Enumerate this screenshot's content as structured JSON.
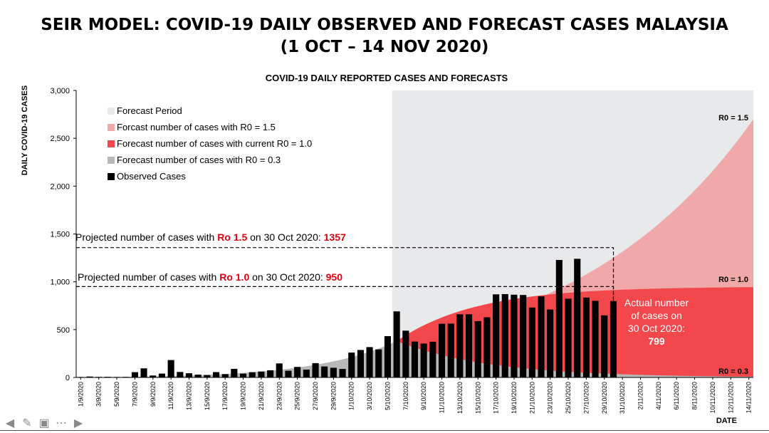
{
  "slide": {
    "title_line1": "SEIR MODEL: COVID-19 DAILY OBSERVED AND FORECAST CASES MALAYSIA",
    "title_line2": "(1 OCT – 14 NOV 2020)"
  },
  "annotations": {
    "proj15_prefix": "Projected number of cases with ",
    "proj15_ro": "Ro 1.5",
    "proj15_mid": " on 30 Oct 2020: ",
    "proj15_value": "1357",
    "proj10_prefix": "Projected number of cases with ",
    "proj10_ro": "Ro 1.0",
    "proj10_mid": " on 30 Oct 2020: ",
    "proj10_value": "950",
    "actual_line1": "Actual number",
    "actual_line2": "of cases on",
    "actual_line3": "30 Oct 2020:",
    "actual_value": "799"
  },
  "nav_icons": [
    "arrow-left-icon",
    "pen-icon",
    "slides-icon",
    "more-icon",
    "arrow-right-icon"
  ],
  "chart_data": {
    "type": "bar",
    "title": "COVID-19 DAILY REPORTED CASES AND FORECASTS",
    "ylabel": "DAILY COVID-19 CASES",
    "xlabel": "DATE",
    "ylim": [
      0,
      3000
    ],
    "yticks": [
      "0",
      "500",
      "1,000",
      "1,500",
      "2,000",
      "2,500",
      "3,000"
    ],
    "ytick_values": [
      0,
      500,
      1000,
      1500,
      2000,
      2500,
      3000
    ],
    "x_tick_labels": [
      "1/9/2020",
      "3/9/2020",
      "5/9/2020",
      "7/9/2020",
      "9/9/2020",
      "11/9/2020",
      "13/9/2020",
      "15/9/2020",
      "17/9/2020",
      "19/9/2020",
      "21/9/2020",
      "23/9/2020",
      "25/9/2020",
      "27/9/2020",
      "29/9/2020",
      "1/10/2020",
      "3/10/2020",
      "5/10/2020",
      "7/10/2020",
      "9/10/2020",
      "11/10/2020",
      "13/10/2020",
      "15/10/2020",
      "17/10/2020",
      "19/10/2020",
      "21/10/2020",
      "23/10/2020",
      "25/10/2020",
      "27/10/2020",
      "29/10/2020",
      "31/10/2020",
      "2/11/2020",
      "4/11/2020",
      "6/11/2020",
      "8/11/2020",
      "10/11/2020",
      "12/11/2020",
      "14/11/2020"
    ],
    "legend": [
      "Forecast Period",
      "Forcast number of cases with R0 = 1.5",
      "Forecast number of cases with current R0 = 1.0",
      "Forecast number of cases with R0 = 0.3",
      "Observed Cases"
    ],
    "legend_position": "top-left",
    "colors": {
      "forecast_period": "#e8e9eb",
      "r15": "#f0a8a8",
      "r10": "#f2484b",
      "r03": "#b8b8b8",
      "observed": "#000000"
    },
    "curve_labels": {
      "r15": "R0 = 1.5",
      "r10": "R0 = 1.0",
      "r03": "R0 = 0.3"
    },
    "forecast_start": "6/10/2020",
    "observed": {
      "dates": [
        "1/9/2020",
        "2/9/2020",
        "3/9/2020",
        "4/9/2020",
        "5/9/2020",
        "6/9/2020",
        "7/9/2020",
        "8/9/2020",
        "9/9/2020",
        "10/9/2020",
        "11/9/2020",
        "12/9/2020",
        "13/9/2020",
        "14/9/2020",
        "15/9/2020",
        "16/9/2020",
        "17/9/2020",
        "18/9/2020",
        "19/9/2020",
        "20/9/2020",
        "21/9/2020",
        "22/9/2020",
        "23/9/2020",
        "24/9/2020",
        "25/9/2020",
        "26/9/2020",
        "27/9/2020",
        "28/9/2020",
        "29/9/2020",
        "30/9/2020",
        "1/10/2020",
        "2/10/2020",
        "3/10/2020",
        "4/10/2020",
        "5/10/2020",
        "6/10/2020",
        "7/10/2020",
        "8/10/2020",
        "9/10/2020",
        "10/10/2020",
        "11/10/2020",
        "12/10/2020",
        "13/10/2020",
        "14/10/2020",
        "15/10/2020",
        "16/10/2020",
        "17/10/2020",
        "18/10/2020",
        "19/10/2020",
        "20/10/2020",
        "21/10/2020",
        "22/10/2020",
        "23/10/2020",
        "24/10/2020",
        "25/10/2020",
        "26/10/2020",
        "27/10/2020",
        "28/10/2020",
        "29/10/2020",
        "30/10/2020"
      ],
      "values": [
        5,
        10,
        6,
        7,
        5,
        6,
        55,
        95,
        20,
        40,
        182,
        57,
        44,
        30,
        25,
        56,
        35,
        90,
        40,
        55,
        62,
        75,
        147,
        70,
        110,
        82,
        150,
        115,
        101,
        89,
        260,
        287,
        317,
        293,
        432,
        691,
        489,
        375,
        354,
        374,
        561,
        563,
        660,
        660,
        589,
        629,
        869,
        871,
        865,
        862,
        731,
        847,
        710,
        1228,
        823,
        1240,
        835,
        801,
        649,
        799
      ]
    },
    "forecast_dates": [
      "6/10/2020",
      "14/11/2020"
    ],
    "forecast_r15": [
      380,
      2700
    ],
    "forecast_r10": [
      380,
      950
    ],
    "forecast_r03": [
      380,
      8
    ],
    "reference_lines": [
      {
        "label": "Ro 1.5",
        "value": 1357,
        "date": "30/10/2020"
      },
      {
        "label": "Ro 1.0",
        "value": 950,
        "date": "30/10/2020"
      }
    ]
  }
}
